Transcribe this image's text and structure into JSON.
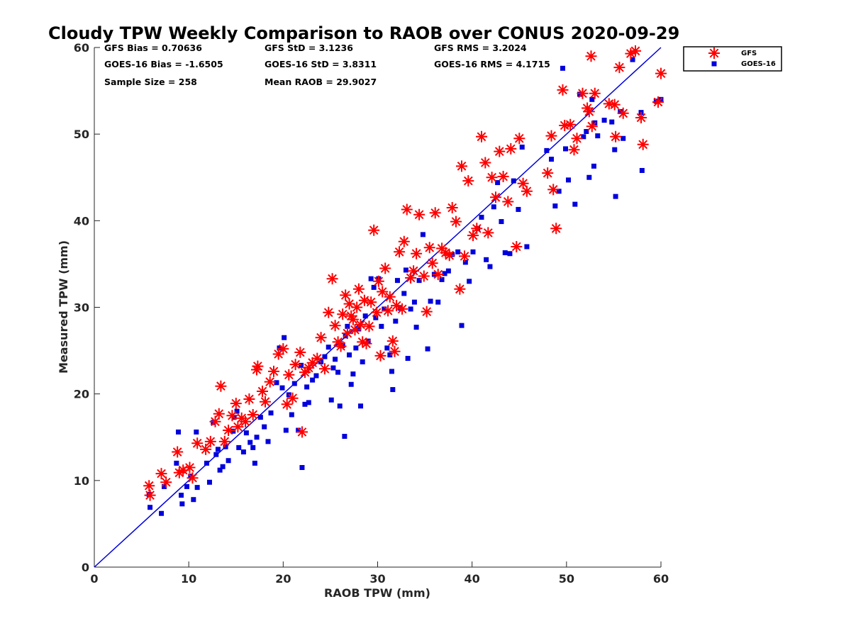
{
  "chart_data": {
    "type": "scatter",
    "title": "Cloudy TPW Weekly Comparison to RAOB over CONUS 2020-09-29",
    "xlabel": "RAOB TPW (mm)",
    "ylabel": "Measured TPW (mm)",
    "xlim": [
      0,
      60
    ],
    "ylim": [
      0,
      60
    ],
    "xticks": [
      0,
      10,
      20,
      30,
      40,
      50,
      60
    ],
    "yticks": [
      0,
      10,
      20,
      30,
      40,
      50,
      60
    ],
    "grid": false,
    "legend_position": "outside top-right",
    "reference_line": {
      "from": [
        0,
        0
      ],
      "to": [
        60,
        60
      ],
      "color": "#0000dd"
    },
    "stats": [
      [
        "GFS Bias = 0.70636",
        "GFS StD = 3.1236",
        "GFS RMS = 3.2024"
      ],
      [
        "GOES-16 Bias = -1.6505",
        "GOES-16 StD = 3.8311",
        "GOES-16 RMS = 4.1715"
      ],
      [
        "Sample Size = 258",
        "Mean RAOB = 29.9027"
      ]
    ],
    "series": [
      {
        "name": "GFS",
        "marker": "asterisk",
        "color": "#ff0000",
        "points": [
          [
            5.8,
            9.4
          ],
          [
            5.9,
            8.3
          ],
          [
            7.1,
            10.8
          ],
          [
            7.6,
            9.8
          ],
          [
            8.8,
            13.3
          ],
          [
            9.0,
            10.9
          ],
          [
            9.4,
            11.2
          ],
          [
            10.1,
            11.5
          ],
          [
            10.4,
            10.3
          ],
          [
            10.9,
            14.3
          ],
          [
            11.8,
            13.6
          ],
          [
            12.3,
            14.5
          ],
          [
            12.8,
            16.8
          ],
          [
            13.2,
            17.7
          ],
          [
            13.4,
            20.9
          ],
          [
            13.8,
            14.5
          ],
          [
            14.2,
            15.8
          ],
          [
            14.6,
            17.5
          ],
          [
            15.0,
            18.9
          ],
          [
            15.2,
            16.2
          ],
          [
            15.6,
            17.2
          ],
          [
            16.0,
            16.8
          ],
          [
            16.4,
            19.4
          ],
          [
            16.8,
            17.6
          ],
          [
            17.2,
            22.8
          ],
          [
            17.3,
            23.2
          ],
          [
            17.8,
            20.3
          ],
          [
            18.1,
            19.1
          ],
          [
            18.6,
            21.4
          ],
          [
            19.0,
            22.6
          ],
          [
            19.5,
            24.6
          ],
          [
            20.0,
            25.2
          ],
          [
            20.4,
            18.8
          ],
          [
            20.6,
            22.2
          ],
          [
            21.0,
            19.5
          ],
          [
            21.3,
            23.4
          ],
          [
            21.8,
            24.8
          ],
          [
            22.0,
            15.6
          ],
          [
            22.3,
            22.5
          ],
          [
            22.7,
            23.0
          ],
          [
            23.1,
            23.6
          ],
          [
            23.6,
            24.1
          ],
          [
            24.0,
            26.5
          ],
          [
            24.4,
            22.9
          ],
          [
            24.8,
            29.4
          ],
          [
            25.2,
            33.3
          ],
          [
            25.5,
            27.9
          ],
          [
            25.8,
            26.0
          ],
          [
            26.1,
            25.5
          ],
          [
            26.3,
            29.2
          ],
          [
            26.6,
            31.4
          ],
          [
            26.8,
            27.0
          ],
          [
            27.0,
            30.4
          ],
          [
            27.2,
            29.0
          ],
          [
            27.4,
            28.6
          ],
          [
            27.6,
            27.4
          ],
          [
            27.8,
            30.0
          ],
          [
            28.0,
            32.1
          ],
          [
            28.2,
            28.0
          ],
          [
            28.4,
            26.0
          ],
          [
            28.6,
            30.8
          ],
          [
            28.8,
            25.8
          ],
          [
            29.1,
            27.8
          ],
          [
            29.3,
            30.6
          ],
          [
            29.6,
            38.9
          ],
          [
            29.9,
            29.4
          ],
          [
            30.1,
            33.0
          ],
          [
            30.3,
            24.4
          ],
          [
            30.5,
            31.8
          ],
          [
            30.8,
            34.5
          ],
          [
            31.1,
            29.6
          ],
          [
            31.3,
            31.2
          ],
          [
            31.6,
            26.1
          ],
          [
            31.8,
            24.9
          ],
          [
            32.0,
            30.2
          ],
          [
            32.3,
            36.4
          ],
          [
            32.6,
            29.8
          ],
          [
            32.8,
            37.6
          ],
          [
            33.1,
            41.3
          ],
          [
            33.5,
            33.4
          ],
          [
            33.8,
            34.2
          ],
          [
            34.1,
            36.2
          ],
          [
            34.4,
            40.7
          ],
          [
            34.9,
            33.6
          ],
          [
            35.2,
            29.5
          ],
          [
            35.5,
            36.9
          ],
          [
            35.8,
            35.1
          ],
          [
            36.1,
            40.9
          ],
          [
            36.4,
            33.8
          ],
          [
            36.8,
            36.8
          ],
          [
            37.2,
            36.3
          ],
          [
            37.6,
            36.0
          ],
          [
            37.9,
            41.5
          ],
          [
            38.3,
            39.9
          ],
          [
            38.7,
            32.1
          ],
          [
            38.9,
            46.3
          ],
          [
            39.2,
            35.9
          ],
          [
            39.6,
            44.6
          ],
          [
            40.1,
            38.3
          ],
          [
            40.5,
            39.1
          ],
          [
            41.0,
            49.7
          ],
          [
            41.4,
            46.7
          ],
          [
            41.7,
            38.6
          ],
          [
            42.1,
            45.0
          ],
          [
            42.5,
            42.7
          ],
          [
            42.9,
            48.0
          ],
          [
            43.3,
            45.1
          ],
          [
            43.8,
            42.2
          ],
          [
            44.1,
            48.3
          ],
          [
            44.7,
            37.0
          ],
          [
            45.0,
            49.5
          ],
          [
            45.4,
            44.3
          ],
          [
            45.8,
            43.4
          ],
          [
            48.0,
            45.5
          ],
          [
            48.4,
            49.8
          ],
          [
            48.6,
            43.6
          ],
          [
            48.9,
            39.1
          ],
          [
            49.6,
            55.1
          ],
          [
            49.8,
            51.0
          ],
          [
            50.4,
            51.1
          ],
          [
            50.8,
            48.2
          ],
          [
            51.1,
            49.5
          ],
          [
            51.7,
            54.7
          ],
          [
            52.2,
            53.0
          ],
          [
            52.4,
            52.6
          ],
          [
            52.6,
            59.0
          ],
          [
            52.7,
            50.9
          ],
          [
            53.0,
            54.7
          ],
          [
            54.5,
            53.5
          ],
          [
            55.1,
            53.4
          ],
          [
            55.2,
            49.7
          ],
          [
            55.6,
            57.7
          ],
          [
            56.0,
            52.4
          ],
          [
            56.8,
            59.3
          ],
          [
            57.3,
            59.6
          ],
          [
            57.9,
            51.9
          ],
          [
            58.1,
            48.8
          ],
          [
            59.7,
            53.7
          ],
          [
            60.0,
            57.0
          ]
        ]
      },
      {
        "name": "GOES-16",
        "marker": "square",
        "color": "#0000dd",
        "points": [
          [
            5.8,
            8.4
          ],
          [
            5.9,
            6.9
          ],
          [
            7.1,
            6.2
          ],
          [
            7.4,
            9.3
          ],
          [
            8.7,
            12.0
          ],
          [
            8.9,
            15.6
          ],
          [
            9.2,
            8.3
          ],
          [
            9.3,
            7.3
          ],
          [
            9.8,
            9.3
          ],
          [
            10.2,
            10.5
          ],
          [
            10.5,
            7.8
          ],
          [
            10.8,
            15.6
          ],
          [
            10.9,
            9.2
          ],
          [
            11.9,
            12.0
          ],
          [
            12.2,
            9.8
          ],
          [
            12.6,
            16.7
          ],
          [
            12.9,
            13.0
          ],
          [
            13.1,
            13.6
          ],
          [
            13.3,
            11.2
          ],
          [
            13.6,
            11.6
          ],
          [
            13.9,
            13.9
          ],
          [
            14.2,
            12.3
          ],
          [
            14.7,
            15.7
          ],
          [
            14.8,
            17.3
          ],
          [
            15.1,
            18.0
          ],
          [
            15.3,
            13.8
          ],
          [
            15.8,
            13.3
          ],
          [
            16.1,
            15.5
          ],
          [
            16.5,
            14.4
          ],
          [
            16.8,
            13.8
          ],
          [
            17.0,
            12.0
          ],
          [
            17.2,
            15.0
          ],
          [
            17.6,
            17.3
          ],
          [
            18.0,
            16.2
          ],
          [
            18.4,
            14.5
          ],
          [
            18.7,
            17.8
          ],
          [
            19.3,
            21.3
          ],
          [
            19.6,
            25.3
          ],
          [
            19.9,
            20.7
          ],
          [
            20.1,
            26.5
          ],
          [
            20.3,
            15.8
          ],
          [
            20.6,
            19.9
          ],
          [
            20.9,
            17.6
          ],
          [
            21.2,
            21.2
          ],
          [
            21.6,
            15.8
          ],
          [
            21.9,
            23.3
          ],
          [
            22.0,
            11.5
          ],
          [
            22.3,
            18.8
          ],
          [
            22.5,
            20.8
          ],
          [
            22.7,
            19.0
          ],
          [
            23.1,
            21.6
          ],
          [
            23.5,
            22.1
          ],
          [
            24.0,
            23.7
          ],
          [
            24.4,
            24.3
          ],
          [
            24.8,
            25.4
          ],
          [
            25.1,
            19.3
          ],
          [
            25.3,
            23.0
          ],
          [
            25.5,
            24.0
          ],
          [
            25.8,
            22.5
          ],
          [
            26.0,
            18.6
          ],
          [
            26.3,
            25.6
          ],
          [
            26.5,
            15.1
          ],
          [
            26.6,
            26.7
          ],
          [
            26.8,
            27.8
          ],
          [
            27.0,
            24.5
          ],
          [
            27.2,
            21.1
          ],
          [
            27.4,
            22.3
          ],
          [
            27.7,
            25.3
          ],
          [
            28.0,
            27.5
          ],
          [
            28.2,
            18.6
          ],
          [
            28.4,
            23.7
          ],
          [
            28.7,
            29.0
          ],
          [
            29.0,
            26.1
          ],
          [
            29.3,
            33.3
          ],
          [
            29.6,
            32.3
          ],
          [
            29.8,
            28.8
          ],
          [
            30.1,
            33.3
          ],
          [
            30.4,
            27.8
          ],
          [
            30.7,
            29.8
          ],
          [
            31.0,
            25.3
          ],
          [
            31.3,
            24.5
          ],
          [
            31.5,
            22.6
          ],
          [
            31.6,
            20.5
          ],
          [
            31.9,
            28.4
          ],
          [
            32.1,
            33.1
          ],
          [
            32.4,
            29.9
          ],
          [
            32.8,
            31.6
          ],
          [
            33.0,
            34.3
          ],
          [
            33.2,
            24.1
          ],
          [
            33.5,
            29.8
          ],
          [
            33.9,
            30.6
          ],
          [
            34.1,
            27.7
          ],
          [
            34.4,
            33.1
          ],
          [
            34.8,
            38.4
          ],
          [
            35.3,
            25.2
          ],
          [
            35.6,
            30.7
          ],
          [
            36.0,
            33.8
          ],
          [
            36.4,
            30.6
          ],
          [
            36.8,
            33.2
          ],
          [
            37.1,
            33.9
          ],
          [
            37.5,
            34.2
          ],
          [
            37.9,
            36.1
          ],
          [
            38.5,
            36.4
          ],
          [
            38.9,
            27.9
          ],
          [
            39.3,
            35.2
          ],
          [
            39.7,
            33.0
          ],
          [
            40.1,
            36.4
          ],
          [
            40.6,
            39.1
          ],
          [
            41.0,
            40.4
          ],
          [
            41.5,
            35.5
          ],
          [
            41.9,
            34.7
          ],
          [
            42.3,
            41.6
          ],
          [
            42.7,
            44.4
          ],
          [
            43.1,
            39.9
          ],
          [
            43.5,
            36.3
          ],
          [
            44.0,
            36.2
          ],
          [
            44.4,
            44.6
          ],
          [
            44.9,
            41.3
          ],
          [
            45.3,
            48.5
          ],
          [
            45.8,
            37.0
          ],
          [
            47.9,
            48.1
          ],
          [
            48.4,
            47.1
          ],
          [
            48.8,
            41.7
          ],
          [
            49.2,
            43.4
          ],
          [
            49.6,
            57.6
          ],
          [
            49.9,
            48.3
          ],
          [
            50.2,
            44.7
          ],
          [
            50.9,
            41.9
          ],
          [
            51.4,
            54.6
          ],
          [
            51.8,
            49.7
          ],
          [
            52.1,
            50.3
          ],
          [
            52.4,
            45.0
          ],
          [
            52.7,
            54.0
          ],
          [
            52.9,
            46.3
          ],
          [
            53.0,
            51.3
          ],
          [
            53.3,
            49.8
          ],
          [
            54.0,
            51.6
          ],
          [
            54.8,
            51.4
          ],
          [
            55.1,
            48.2
          ],
          [
            55.2,
            42.8
          ],
          [
            55.7,
            52.6
          ],
          [
            56.0,
            49.5
          ],
          [
            57.0,
            58.6
          ],
          [
            57.9,
            52.5
          ],
          [
            58.0,
            45.8
          ],
          [
            59.5,
            53.8
          ],
          [
            60.0,
            54.0
          ]
        ]
      }
    ]
  }
}
